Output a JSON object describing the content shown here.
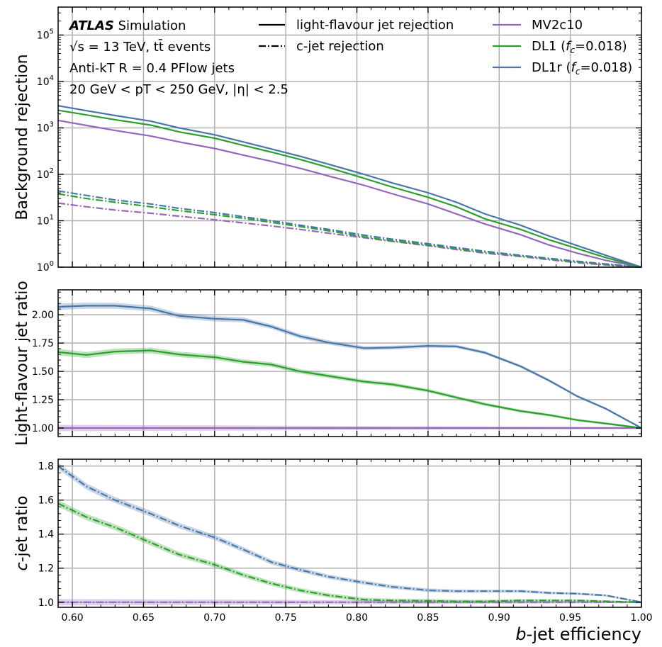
{
  "chart_data": {
    "type": "line",
    "x_label_parts": {
      "italic": "b",
      "rest": "-jet efficiency"
    },
    "xlim": [
      0.59,
      1.0
    ],
    "x_ticks": [
      0.6,
      0.65,
      0.7,
      0.75,
      0.8,
      0.85,
      0.9,
      0.95,
      1.0
    ],
    "x_tick_labels": [
      "0.60",
      "0.65",
      "0.70",
      "0.75",
      "0.80",
      "0.85",
      "0.90",
      "0.95",
      "1.00"
    ],
    "x": [
      0.59,
      0.61,
      0.63,
      0.655,
      0.675,
      0.7,
      0.72,
      0.74,
      0.76,
      0.78,
      0.805,
      0.825,
      0.85,
      0.87,
      0.89,
      0.915,
      0.935,
      0.955,
      0.975,
      1.0
    ],
    "legend_position": "top-right",
    "annotation": {
      "atlas": "ATLAS",
      "simulation": "Simulation",
      "line2": "√s = 13 TeV, tt̄ events",
      "line3": "Anti-kT R = 0.4 PFlow jets",
      "line4": "20 GeV < pT < 250 GeV, |η| < 2.5"
    },
    "style_legend": [
      {
        "label": "light-flavour jet rejection",
        "style": "solid"
      },
      {
        "label": "c-jet rejection",
        "style": "dashdot"
      }
    ],
    "series": [
      {
        "name": "MV2c10",
        "label_main": "MV2c10",
        "label_sub": "",
        "color": "#9467bd",
        "light_rejection": [
          1450,
          1130,
          880,
          670,
          500,
          360,
          260,
          190,
          135,
          92,
          58,
          38,
          23,
          14,
          8.5,
          5,
          3.0,
          2.0,
          1.4,
          1.0
        ],
        "c_rejection": [
          24,
          20,
          17,
          14.5,
          12.5,
          10.5,
          9,
          7.7,
          6.5,
          5.4,
          4.3,
          3.6,
          2.9,
          2.4,
          2.0,
          1.7,
          1.45,
          1.25,
          1.12,
          1.0
        ],
        "light_ratio": [
          1.0,
          1.0,
          1.0,
          1.0,
          1.0,
          1.0,
          1.0,
          1.0,
          1.0,
          1.0,
          1.0,
          1.0,
          1.0,
          1.0,
          1.0,
          1.0,
          1.0,
          1.0,
          1.0,
          1.0
        ],
        "c_ratio": [
          1.0,
          1.0,
          1.0,
          1.0,
          1.0,
          1.0,
          1.0,
          1.0,
          1.0,
          1.0,
          1.0,
          1.0,
          1.0,
          1.0,
          1.0,
          1.0,
          1.0,
          1.0,
          1.0,
          1.0
        ]
      },
      {
        "name": "DL1 (fc=0.018)",
        "label_main": "DL1 (",
        "label_sub": "=0.018)",
        "color": "#2ca02c",
        "light_rejection": [
          2400,
          1900,
          1500,
          1150,
          820,
          600,
          420,
          300,
          210,
          140,
          82,
          53,
          32,
          20,
          11,
          6.5,
          3.9,
          2.5,
          1.6,
          1.0
        ],
        "c_rejection": [
          38,
          30,
          25,
          20,
          16.5,
          13.5,
          11.3,
          9.2,
          7.5,
          6.1,
          4.5,
          3.7,
          3.0,
          2.5,
          2.1,
          1.75,
          1.5,
          1.3,
          1.15,
          1.0
        ],
        "light_ratio": [
          1.67,
          1.645,
          1.675,
          1.685,
          1.65,
          1.625,
          1.585,
          1.56,
          1.5,
          1.46,
          1.41,
          1.385,
          1.33,
          1.27,
          1.21,
          1.15,
          1.115,
          1.07,
          1.04,
          1.0
        ],
        "c_ratio": [
          1.58,
          1.5,
          1.44,
          1.35,
          1.28,
          1.22,
          1.16,
          1.11,
          1.07,
          1.04,
          1.015,
          1.01,
          1.008,
          1.005,
          1.005,
          1.01,
          1.01,
          1.01,
          1.005,
          1.0
        ]
      },
      {
        "name": "DL1r (fc=0.018)",
        "label_main": "DL1r (",
        "label_sub": "=0.018)",
        "color": "#4878a8",
        "light_rejection": [
          3000,
          2350,
          1850,
          1400,
          1000,
          710,
          500,
          350,
          245,
          165,
          100,
          65,
          40,
          25,
          14,
          8,
          4.7,
          2.9,
          1.8,
          1.0
        ],
        "c_rejection": [
          44,
          35,
          28,
          23,
          18.5,
          15,
          12.2,
          10,
          8,
          6.5,
          4.9,
          4.0,
          3.2,
          2.65,
          2.2,
          1.8,
          1.55,
          1.34,
          1.17,
          1.0
        ],
        "light_ratio": [
          2.07,
          2.08,
          2.08,
          2.055,
          1.99,
          1.965,
          1.955,
          1.895,
          1.81,
          1.755,
          1.705,
          1.71,
          1.725,
          1.72,
          1.665,
          1.545,
          1.42,
          1.28,
          1.17,
          1.0
        ],
        "c_ratio": [
          1.8,
          1.68,
          1.6,
          1.52,
          1.45,
          1.38,
          1.31,
          1.235,
          1.19,
          1.15,
          1.115,
          1.09,
          1.07,
          1.065,
          1.065,
          1.065,
          1.055,
          1.05,
          1.04,
          1.0
        ]
      }
    ],
    "panels": [
      {
        "key": "light_rejection",
        "ylabel": "Background rejection",
        "scale": "log",
        "ylim": [
          1,
          400000
        ],
        "y_ticks": [
          1,
          10,
          100,
          1000,
          10000,
          100000
        ],
        "y_tick_labels": [
          [
            "10",
            "0"
          ],
          [
            "10",
            "1"
          ],
          [
            "10",
            "2"
          ],
          [
            "10",
            "3"
          ],
          [
            "10",
            "4"
          ],
          [
            "10",
            "5"
          ]
        ]
      },
      {
        "key": "light_ratio",
        "ylabel": "Light-flavour jet ratio",
        "scale": "linear",
        "ylim": [
          0.925,
          2.22
        ],
        "y_ticks": [
          1.0,
          1.25,
          1.5,
          1.75,
          2.0
        ],
        "y_tick_labels": [
          "1.00",
          "1.25",
          "1.50",
          "1.75",
          "2.00"
        ]
      },
      {
        "key": "c_ratio",
        "ylabel_parts": {
          "italic": "c",
          "rest": "-jet ratio"
        },
        "scale": "linear",
        "ylim": [
          0.97,
          1.84
        ],
        "y_ticks": [
          1.0,
          1.2,
          1.4,
          1.6,
          1.8
        ],
        "y_tick_labels": [
          "1.0",
          "1.2",
          "1.4",
          "1.6",
          "1.8"
        ]
      }
    ]
  }
}
